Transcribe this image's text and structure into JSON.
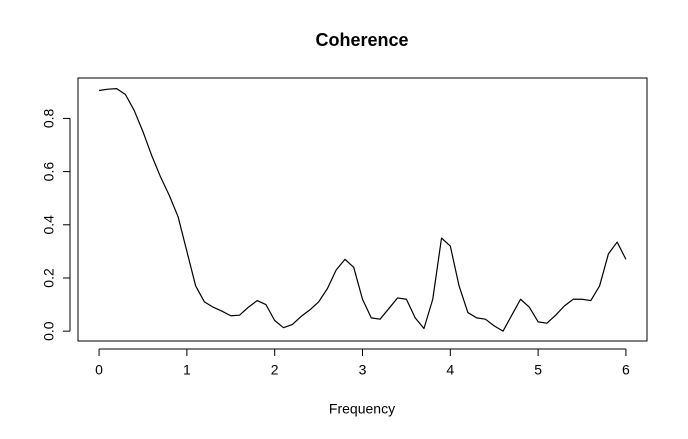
{
  "chart_data": {
    "type": "line",
    "title": "Coherence",
    "x_label": "Frequency",
    "x": [
      0,
      0.1,
      0.2,
      0.3,
      0.4,
      0.5,
      0.6,
      0.7,
      0.8,
      0.9,
      1.0,
      1.1,
      1.2,
      1.3,
      1.4,
      1.5,
      1.6,
      1.7,
      1.8,
      1.9,
      2.0,
      2.1,
      2.2,
      2.3,
      2.4,
      2.5,
      2.6,
      2.7,
      2.8,
      2.9,
      3.0,
      3.1,
      3.2,
      3.3,
      3.4,
      3.5,
      3.6,
      3.7,
      3.8,
      3.9,
      4.0,
      4.1,
      4.2,
      4.3,
      4.4,
      4.5,
      4.6,
      4.7,
      4.8,
      4.9,
      5.0,
      5.1,
      5.2,
      5.3,
      5.4,
      5.5,
      5.6,
      5.7,
      5.8,
      5.9,
      6.0
    ],
    "values": [
      0.905,
      0.91,
      0.912,
      0.89,
      0.83,
      0.75,
      0.66,
      0.58,
      0.51,
      0.43,
      0.3,
      0.17,
      0.11,
      0.09,
      0.075,
      0.058,
      0.06,
      0.09,
      0.115,
      0.1,
      0.04,
      0.013,
      0.025,
      0.055,
      0.08,
      0.11,
      0.16,
      0.23,
      0.27,
      0.24,
      0.12,
      0.05,
      0.045,
      0.085,
      0.125,
      0.12,
      0.05,
      0.01,
      0.12,
      0.35,
      0.32,
      0.17,
      0.07,
      0.05,
      0.045,
      0.02,
      0.0,
      0.06,
      0.12,
      0.09,
      0.035,
      0.03,
      0.06,
      0.095,
      0.12,
      0.12,
      0.115,
      0.17,
      0.29,
      0.335,
      0.27
    ],
    "color": "#000000",
    "xlim": [
      -0.24,
      6.24
    ],
    "ylim": [
      -0.037,
      0.952
    ],
    "xticks": [
      0,
      1,
      2,
      3,
      4,
      5,
      6
    ],
    "yticks": [
      {
        "value": 0,
        "label": "0.0"
      },
      0.2,
      0.4,
      0.6,
      0.8
    ]
  }
}
